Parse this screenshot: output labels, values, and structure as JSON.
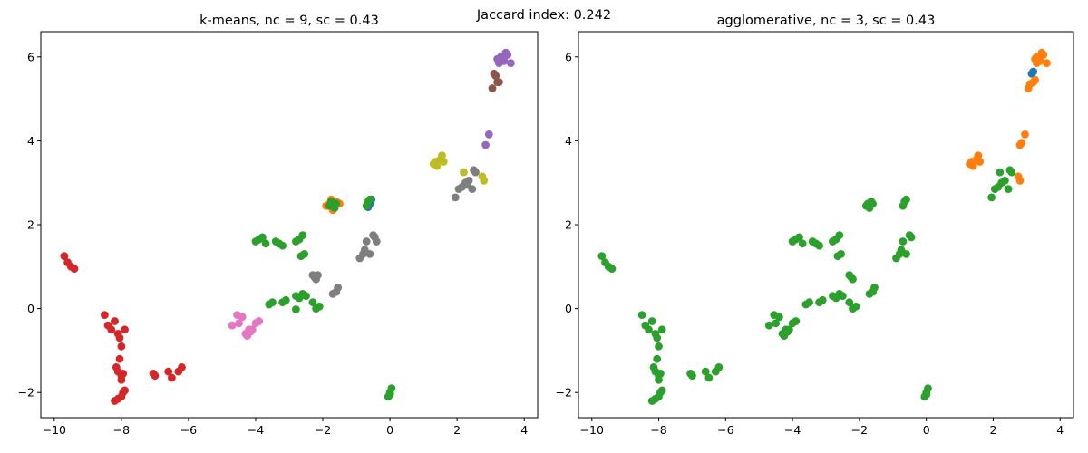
{
  "suptitle": "Jaccard index: 0.242",
  "palette": {
    "c0": "#1f77b4",
    "c1": "#ff7f0e",
    "c2": "#2ca02c",
    "c3": "#d62728",
    "c4": "#9467bd",
    "c5": "#8c564b",
    "c6": "#e377c2",
    "c7": "#7f7f7f",
    "c8": "#bcbd22"
  },
  "chart_data": [
    {
      "type": "scatter",
      "title": "k-means, nc = 9, sc = 0.43",
      "xlim": [
        -10.4,
        4.4
      ],
      "ylim": [
        -2.6,
        6.6
      ],
      "xticks": [
        -10,
        -8,
        -6,
        -4,
        -2,
        0,
        2,
        4
      ],
      "yticks": [
        -2,
        0,
        2,
        4,
        6
      ],
      "xlabel": "",
      "ylabel": "",
      "grid": false,
      "series": [
        {
          "cluster": 0,
          "color": "#1f77b4",
          "x": [
            -0.6,
            -0.55,
            -0.65,
            -0.58,
            -0.62
          ],
          "y": [
            2.5,
            2.6,
            2.42,
            2.55,
            2.47
          ]
        },
        {
          "cluster": 1,
          "color": "#ff7f0e",
          "x": [
            -1.9,
            -1.8,
            -1.7,
            -1.65,
            -1.55,
            -1.75,
            -1.6,
            -1.85,
            -1.7,
            -1.5
          ],
          "y": [
            2.45,
            2.5,
            2.55,
            2.4,
            2.5,
            2.6,
            2.55,
            2.45,
            2.35,
            2.5
          ]
        },
        {
          "cluster": 2,
          "color": "#2ca02c",
          "x": [
            -4.0,
            -3.9,
            -3.8,
            -3.7,
            -3.4,
            -3.3,
            -3.2,
            -2.8,
            -2.7,
            -2.6,
            -2.65,
            -2.55,
            -3.6,
            -3.5,
            -3.2,
            -3.1,
            -2.8,
            -2.7,
            -2.6,
            -2.5,
            -2.3,
            -2.2,
            -2.1,
            -1.7,
            -1.6,
            -1.8,
            -1.75,
            -1.65,
            -0.7,
            -0.65,
            -0.6,
            0.0,
            0.05,
            0.0,
            -0.05,
            -2.8
          ],
          "y": [
            1.6,
            1.65,
            1.7,
            1.55,
            1.6,
            1.55,
            1.5,
            1.6,
            1.65,
            1.75,
            1.25,
            1.3,
            0.1,
            0.15,
            0.15,
            0.2,
            0.3,
            0.25,
            0.35,
            0.3,
            0.15,
            0.0,
            0.05,
            2.45,
            2.5,
            2.45,
            2.55,
            2.4,
            2.45,
            2.55,
            2.6,
            -2.0,
            -1.9,
            -2.05,
            -2.1,
            -0.02
          ]
        },
        {
          "cluster": 3,
          "color": "#d62728",
          "x": [
            -9.7,
            -9.6,
            -9.5,
            -9.4,
            -8.5,
            -8.4,
            -8.3,
            -8.2,
            -8.1,
            -8.05,
            -8.0,
            -7.9,
            -8.15,
            -8.1,
            -8.0,
            -7.95,
            -8.0,
            -8.05,
            -7.9,
            -8.2,
            -8.1,
            -8.0,
            -7.95,
            -7.05,
            -7.0,
            -6.6,
            -6.5,
            -6.3,
            -6.2
          ],
          "y": [
            1.25,
            1.1,
            1.0,
            0.95,
            -0.15,
            -0.4,
            -0.5,
            -0.3,
            -0.6,
            -0.7,
            -0.9,
            -0.5,
            -1.4,
            -1.5,
            -1.6,
            -1.55,
            -1.7,
            -1.2,
            -1.95,
            -2.2,
            -2.15,
            -2.1,
            -2.0,
            -1.55,
            -1.6,
            -1.5,
            -1.65,
            -1.5,
            -1.4
          ]
        },
        {
          "cluster": 4,
          "color": "#9467bd",
          "x": [
            3.2,
            3.3,
            3.4,
            3.5,
            3.6,
            3.25,
            3.35,
            3.45,
            2.85,
            2.95
          ],
          "y": [
            5.95,
            6.0,
            5.9,
            6.05,
            5.85,
            5.85,
            5.95,
            6.1,
            3.9,
            4.15
          ]
        },
        {
          "cluster": 5,
          "color": "#8c564b",
          "x": [
            3.1,
            3.2,
            3.15,
            3.05,
            3.25
          ],
          "y": [
            5.6,
            5.4,
            5.55,
            5.25,
            5.4
          ]
        },
        {
          "cluster": 6,
          "color": "#e377c2",
          "x": [
            -4.7,
            -4.5,
            -4.4,
            -4.3,
            -4.2,
            -4.1,
            -4.0,
            -3.9,
            -4.25,
            -4.15,
            -4.55
          ],
          "y": [
            -0.4,
            -0.35,
            -0.2,
            -0.6,
            -0.5,
            -0.5,
            -0.35,
            -0.3,
            -0.65,
            -0.55,
            -0.15
          ]
        },
        {
          "cluster": 7,
          "color": "#7f7f7f",
          "x": [
            -2.3,
            -2.25,
            -2.2,
            -2.15,
            -1.7,
            -1.6,
            -1.55,
            -0.9,
            -0.8,
            -0.75,
            -0.7,
            -0.6,
            -0.5,
            -0.45,
            -0.4,
            1.95,
            2.05,
            2.15,
            2.25,
            2.35,
            2.45,
            2.5,
            2.55,
            2.3
          ],
          "y": [
            0.8,
            0.75,
            0.7,
            0.8,
            0.35,
            0.4,
            0.5,
            1.2,
            1.3,
            1.4,
            1.6,
            1.3,
            1.75,
            1.7,
            1.6,
            2.65,
            2.85,
            2.9,
            3.0,
            3.05,
            2.85,
            3.3,
            3.25,
            2.95
          ]
        },
        {
          "cluster": 8,
          "color": "#bcbd22",
          "x": [
            1.3,
            1.35,
            1.4,
            1.5,
            1.55,
            1.6,
            2.2,
            2.75,
            2.8
          ],
          "y": [
            3.45,
            3.5,
            3.4,
            3.55,
            3.65,
            3.5,
            3.25,
            3.15,
            3.05
          ]
        }
      ]
    },
    {
      "type": "scatter",
      "title": "agglomerative, nc = 3, sc = 0.43",
      "xlim": [
        -10.4,
        4.4
      ],
      "ylim": [
        -2.6,
        6.6
      ],
      "xticks": [
        -10,
        -8,
        -6,
        -4,
        -2,
        0,
        2,
        4
      ],
      "yticks": [
        -2,
        0,
        2,
        4,
        6
      ],
      "xlabel": "",
      "ylabel": "",
      "grid": false,
      "series": [
        {
          "cluster": 0,
          "color": "#1f77b4",
          "x": [
            3.15,
            3.2
          ],
          "y": [
            5.6,
            5.65
          ]
        },
        {
          "cluster": 1,
          "color": "#ff7f0e",
          "x": [
            3.25,
            3.3,
            3.4,
            3.5,
            3.6,
            3.3,
            3.4,
            3.45,
            3.1,
            3.2,
            3.25,
            3.05,
            2.8,
            2.85,
            2.95,
            1.3,
            1.35,
            1.4,
            1.5,
            1.55,
            1.6,
            2.75,
            2.8
          ],
          "y": [
            5.95,
            6.0,
            5.9,
            6.05,
            5.85,
            5.85,
            5.95,
            6.1,
            5.35,
            5.4,
            5.45,
            5.25,
            3.9,
            3.95,
            4.15,
            3.45,
            3.5,
            3.4,
            3.55,
            3.65,
            3.5,
            3.15,
            3.05
          ]
        },
        {
          "cluster": 2,
          "color": "#2ca02c",
          "x": [
            -9.7,
            -9.6,
            -9.5,
            -9.4,
            -8.5,
            -8.4,
            -8.3,
            -8.2,
            -8.1,
            -8.05,
            -8.0,
            -7.9,
            -8.15,
            -8.1,
            -8.0,
            -7.95,
            -8.0,
            -8.05,
            -7.9,
            -8.2,
            -8.1,
            -8.0,
            -7.95,
            -7.05,
            -7.0,
            -6.6,
            -6.5,
            -6.3,
            -6.2,
            -4.7,
            -4.5,
            -4.4,
            -4.3,
            -4.2,
            -4.1,
            -4.0,
            -3.9,
            -4.25,
            -4.15,
            -4.55,
            -4.0,
            -3.9,
            -3.8,
            -3.7,
            -3.4,
            -3.3,
            -3.2,
            -2.8,
            -2.7,
            -2.6,
            -2.65,
            -2.55,
            -3.6,
            -3.5,
            -3.2,
            -3.1,
            -2.8,
            -2.7,
            -2.6,
            -2.5,
            -2.3,
            -2.2,
            -2.1,
            -2.3,
            -2.25,
            -2.2,
            -1.7,
            -1.6,
            -1.55,
            -1.8,
            -1.75,
            -1.65,
            -1.7,
            -1.6,
            -0.9,
            -0.8,
            -0.75,
            -0.7,
            -0.6,
            -0.5,
            -0.45,
            -0.7,
            -0.65,
            -0.6,
            0.0,
            0.05,
            0.0,
            -0.05,
            1.95,
            2.05,
            2.15,
            2.25,
            2.35,
            2.45,
            2.5,
            2.55,
            2.2
          ],
          "y": [
            1.25,
            1.1,
            1.0,
            0.95,
            -0.15,
            -0.4,
            -0.5,
            -0.3,
            -0.6,
            -0.7,
            -0.9,
            -0.5,
            -1.4,
            -1.5,
            -1.6,
            -1.55,
            -1.7,
            -1.2,
            -1.95,
            -2.2,
            -2.15,
            -2.1,
            -2.0,
            -1.55,
            -1.6,
            -1.5,
            -1.65,
            -1.5,
            -1.4,
            -0.4,
            -0.35,
            -0.2,
            -0.6,
            -0.5,
            -0.5,
            -0.35,
            -0.3,
            -0.65,
            -0.55,
            -0.15,
            1.6,
            1.65,
            1.7,
            1.55,
            1.6,
            1.55,
            1.5,
            1.6,
            1.65,
            1.75,
            1.25,
            1.3,
            0.1,
            0.15,
            0.15,
            0.2,
            0.3,
            0.25,
            0.35,
            0.3,
            0.15,
            0.0,
            0.05,
            0.8,
            0.75,
            0.7,
            0.35,
            0.4,
            0.5,
            2.45,
            2.5,
            2.55,
            2.4,
            2.5,
            1.2,
            1.3,
            1.4,
            1.6,
            1.3,
            1.75,
            1.7,
            2.45,
            2.55,
            2.6,
            -2.0,
            -1.9,
            -2.05,
            -2.1,
            2.65,
            2.85,
            2.9,
            3.0,
            3.05,
            2.85,
            3.3,
            3.25,
            3.25
          ]
        }
      ]
    }
  ]
}
